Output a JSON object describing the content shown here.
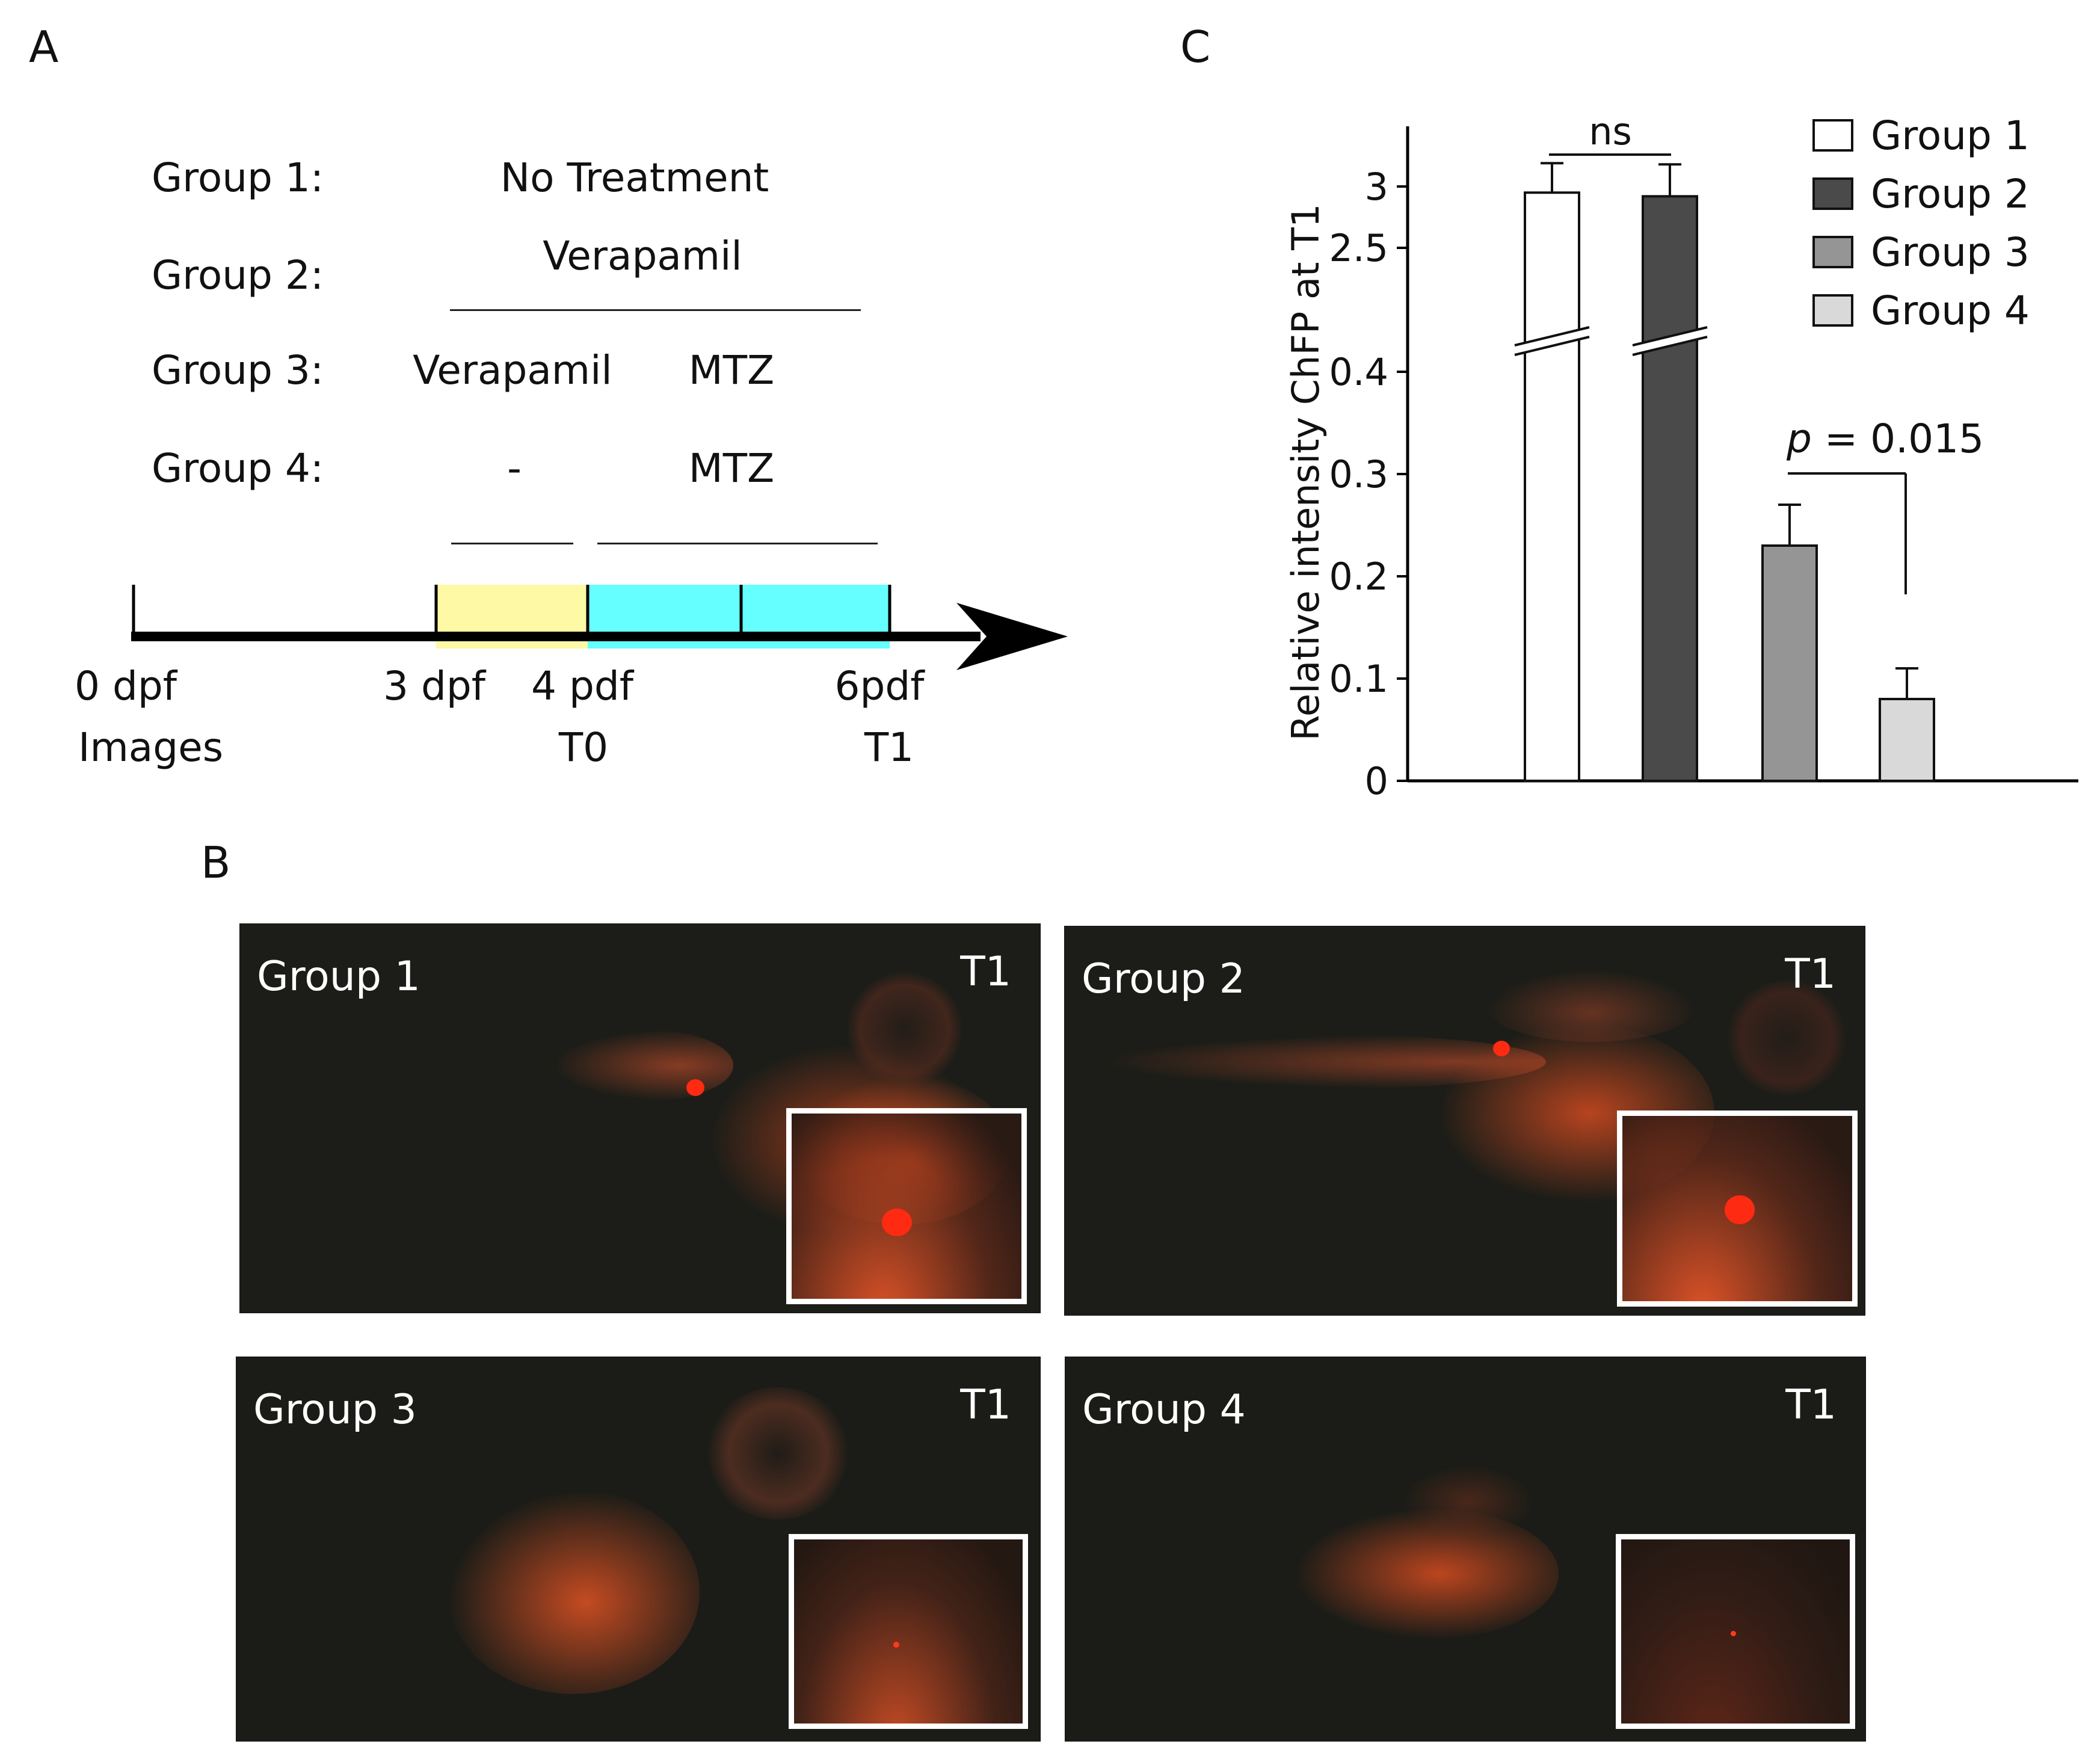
{
  "panels": {
    "a": "A",
    "b": "B",
    "c": "C"
  },
  "panel_a": {
    "groups": [
      {
        "label": "Group 1:",
        "treatment": "No Treatment"
      },
      {
        "label": "Group 2:",
        "treatment": "Verapamil"
      },
      {
        "label": "Group 3:",
        "treatment_left": "Verapamil",
        "treatment_right": "MTZ"
      },
      {
        "label": "Group 4:",
        "treatment_left": "-",
        "treatment_right": "MTZ"
      }
    ],
    "timeline": {
      "points": [
        "0 dpf",
        "3 dpf",
        "4 pdf",
        "6pdf"
      ],
      "sublabels": [
        "Images",
        "T0",
        "T1"
      ],
      "colors": {
        "verapamil_phase": "#fdf9a4",
        "mtz_phase": "#66ffff",
        "axis": "#000000"
      }
    }
  },
  "panel_b": {
    "images": [
      {
        "name": "Group 1",
        "time": "T1"
      },
      {
        "name": "Group  2",
        "time": "T1"
      },
      {
        "name": "Group 3",
        "time": "T1"
      },
      {
        "name": "Group 4",
        "time": "T1"
      }
    ]
  },
  "chart_data": {
    "type": "bar",
    "title": "",
    "xlabel": "",
    "ylabel": "Relative intensity ChFP at T1",
    "categories": [
      "Group 1",
      "Group 2",
      "Group 3",
      "Group 4"
    ],
    "values": [
      2.95,
      2.92,
      0.23,
      0.08
    ],
    "errors": [
      0.24,
      0.26,
      0.04,
      0.03
    ],
    "colors": [
      "#ffffff",
      "#4a4a4a",
      "#959595",
      "#d9d9d9"
    ],
    "axis_break": {
      "from": 0.45,
      "to": 2.45
    },
    "yticks_lower": [
      0,
      0.1,
      0.2,
      0.3,
      0.4
    ],
    "yticks_upper": [
      2.5,
      3
    ],
    "ytick_labels": [
      "0",
      "0.1",
      "0.2",
      "0.3",
      "0.4",
      "2.5",
      "3"
    ],
    "legend": [
      "Group 1",
      "Group 2",
      "Group 3",
      "Group 4"
    ],
    "legend_position": "top-right",
    "annotations": [
      {
        "text": "ns",
        "between": [
          "Group 1",
          "Group 2"
        ]
      },
      {
        "text_italic": "p",
        "text": " = 0.015",
        "between": [
          "Group 3",
          "Group 4"
        ]
      }
    ]
  }
}
